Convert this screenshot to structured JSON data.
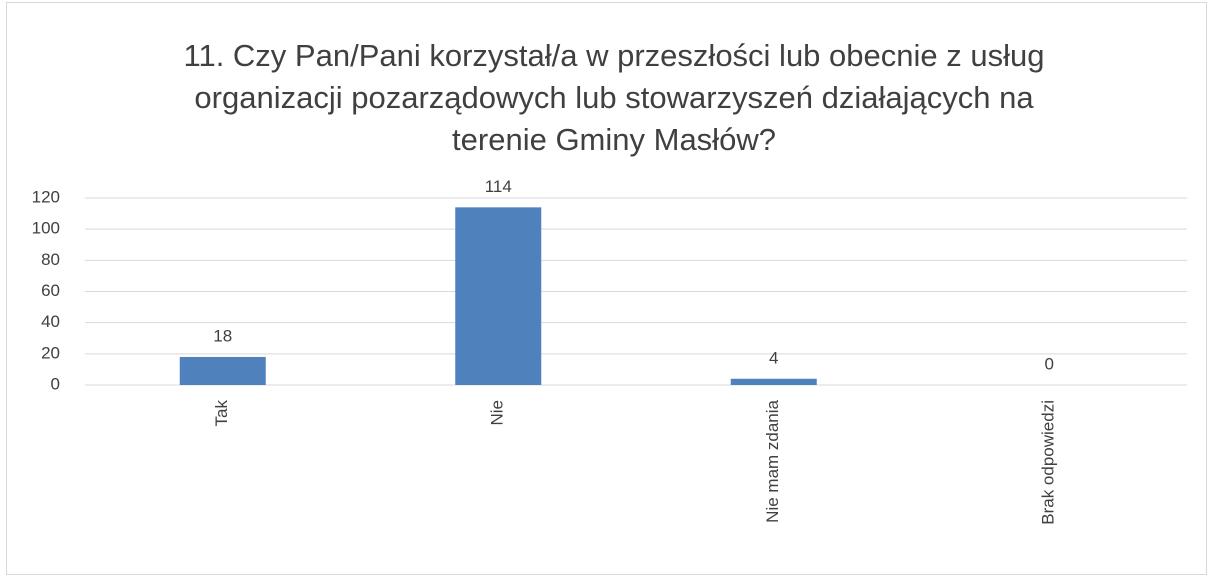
{
  "chart_data": {
    "type": "bar",
    "title": [
      "11. Czy Pan/Pani korzystał/a w przeszłości lub obecnie z usług",
      "organizacji pozarządowych  lub stowarzyszeń działających na",
      "terenie Gminy Masłów?"
    ],
    "categories": [
      "Tak",
      "Nie",
      "Nie mam zdania",
      "Brak odpowiedzi"
    ],
    "values": [
      18,
      114,
      4,
      0
    ],
    "color": "#4f81bd",
    "ylim": [
      0,
      120
    ],
    "yticks": [
      0,
      20,
      40,
      60,
      80,
      100,
      120
    ],
    "grid": true
  }
}
